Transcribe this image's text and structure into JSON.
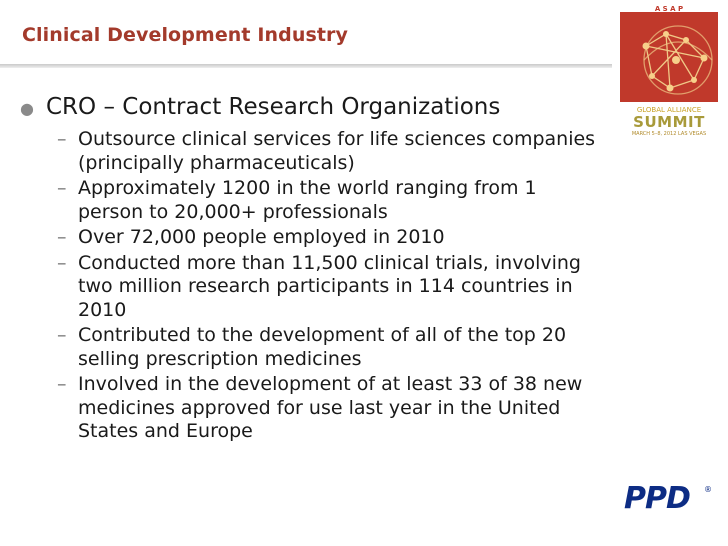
{
  "slide": {
    "title": "Clinical Development Industry",
    "main_bullet": "CRO – Contract Research Organizations",
    "sub_bullets": [
      "Outsource clinical services for life sciences companies\n(principally pharmaceuticals)",
      "Approximately 1200 in the world ranging from 1\nperson to 20,000+ professionals",
      "Over 72,000 people employed in 2010",
      "Conducted more than 11,500 clinical trials, involving\ntwo million research participants in 114 countries in\n2010",
      "Contributed to the development of all of the top 20\nselling prescription medicines",
      "Involved in the development of at least 33 of 38 new\nmedicines approved for use last year in the United\nStates and Europe"
    ]
  },
  "summit_logo": {
    "top_text": "A S A P",
    "line1": "GLOBAL ALLIANCE",
    "line2": "SUMMIT",
    "line3": "MARCH 5–8, 2012 LAS VEGAS"
  },
  "ppd_logo": {
    "text": "PPD",
    "mark": "®"
  },
  "colors": {
    "title": "#a33a2b",
    "summit_red": "#c0392b",
    "summit_gold": "#c9a227",
    "ppd_blue": "#0d2c84"
  }
}
